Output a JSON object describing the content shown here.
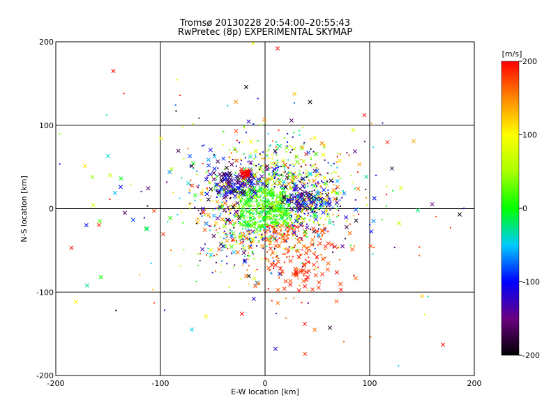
{
  "chart_data": {
    "type": "scatter",
    "title": "Tromsø 20130228 20:54:00–20:55:43",
    "subtitle": "RwPretec (8p) EXPERIMENTAL SKYMAP",
    "xlabel": "E-W location [km]",
    "ylabel": "N-S location [km]",
    "xlim": [
      -200,
      200
    ],
    "ylim": [
      -200,
      200
    ],
    "xticks": [
      -200,
      -100,
      0,
      100,
      200
    ],
    "yticks": [
      -200,
      -100,
      0,
      100,
      200
    ],
    "grid": true,
    "colorbar": {
      "label": "[m/s]",
      "range": [
        -200,
        200
      ],
      "ticks": [
        -200,
        -100,
        0,
        100,
        200
      ],
      "colormap": "rainbow (black-purple-blue-cyan-green-yellow-red)"
    },
    "markers": [
      "x",
      "dot"
    ],
    "points_sample": [
      {
        "x": -18,
        "y": 42,
        "v": 200,
        "m": "x"
      },
      {
        "x": 12,
        "y": 192,
        "v": 200,
        "m": "x"
      },
      {
        "x": -145,
        "y": 165,
        "v": 200,
        "m": "x"
      },
      {
        "x": -135,
        "y": 138,
        "v": 200,
        "m": "dot"
      },
      {
        "x": -28,
        "y": 128,
        "v": 150,
        "m": "x"
      },
      {
        "x": -85,
        "y": 117,
        "v": -200,
        "m": "dot"
      },
      {
        "x": -172,
        "y": 51,
        "v": 110,
        "m": "x"
      },
      {
        "x": -165,
        "y": 38,
        "v": 40,
        "m": "x"
      },
      {
        "x": -150,
        "y": 63,
        "v": -40,
        "m": "x"
      },
      {
        "x": -148,
        "y": 40,
        "v": 60,
        "m": "x"
      },
      {
        "x": -138,
        "y": 26,
        "v": -100,
        "m": "x"
      },
      {
        "x": -185,
        "y": -47,
        "v": 200,
        "m": "x"
      },
      {
        "x": -170,
        "y": -92,
        "v": -30,
        "m": "x"
      },
      {
        "x": -158,
        "y": -15,
        "v": 20,
        "m": "x"
      },
      {
        "x": 95,
        "y": 112,
        "v": 200,
        "m": "x"
      },
      {
        "x": 142,
        "y": 81,
        "v": 140,
        "m": "x"
      },
      {
        "x": 130,
        "y": 25,
        "v": 80,
        "m": "x"
      },
      {
        "x": 146,
        "y": -2,
        "v": -20,
        "m": "x"
      },
      {
        "x": 186,
        "y": -7,
        "v": -200,
        "m": "x"
      },
      {
        "x": 170,
        "y": -163,
        "v": 200,
        "m": "x"
      },
      {
        "x": 150,
        "y": -105,
        "v": 120,
        "m": "x"
      },
      {
        "x": 38,
        "y": -138,
        "v": 200,
        "m": "x"
      },
      {
        "x": 10,
        "y": -168,
        "v": -120,
        "m": "x"
      },
      {
        "x": -22,
        "y": -126,
        "v": 200,
        "m": "x"
      },
      {
        "x": -40,
        "y": -45,
        "v": -110,
        "m": "x"
      },
      {
        "x": 0,
        "y": 0,
        "v": 20,
        "m": "dot"
      }
    ]
  }
}
